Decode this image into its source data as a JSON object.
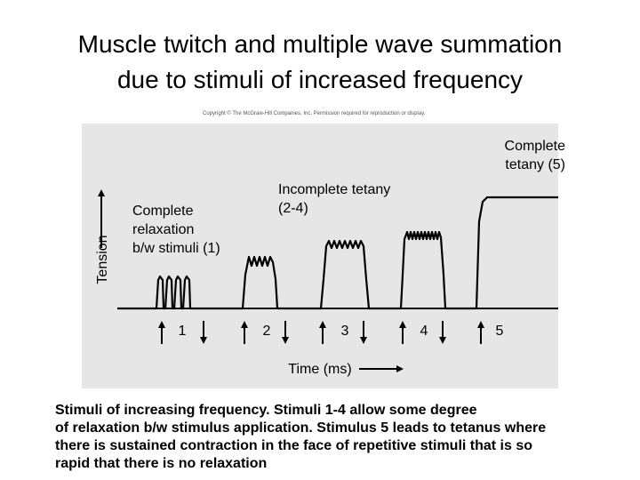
{
  "title": {
    "line1": "Muscle twitch and multiple wave summation",
    "line2": "due to stimuli of increased frequency"
  },
  "copyright": "Copyright © The McGraw-Hill Companies, Inc. Permission required for reproduction or display.",
  "diagram": {
    "y_axis_label": "Tension",
    "x_axis_label": "Time (ms)",
    "stimulus_numbers": [
      "1",
      "2",
      "3",
      "4",
      "5"
    ],
    "labels": {
      "complete_relaxation": [
        "Complete",
        "relaxation",
        "b/w stimuli (1)"
      ],
      "incomplete_tetany": [
        "Incomplete tetany",
        "(2-4)"
      ],
      "complete_tetany": [
        "Complete",
        "tetany (5)"
      ]
    }
  },
  "caption": [
    "Stimuli of increasing frequency.  Stimuli 1-4 allow some degree",
    "of relaxation b/w stimulus application.  Stimulus 5 leads to tetanus where",
    "there is sustained contraction in the face of repetitive stimuli that is so",
    "rapid that there is no relaxation"
  ]
}
